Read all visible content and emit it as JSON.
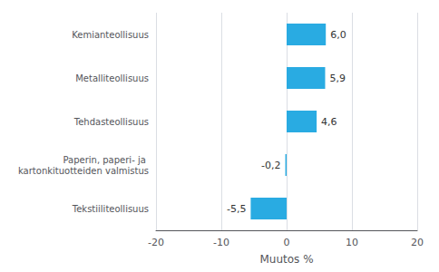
{
  "chart_data": {
    "type": "bar",
    "orientation": "horizontal",
    "categories": [
      "Tekstiiliteollisuus",
      "Paperin, paperi- ja kartonkituotteiden valmistus",
      "Tehdasteollisuus",
      "Metalliteollisuus",
      "Kemianteollisuus"
    ],
    "values": [
      -5.5,
      -0.2,
      4.6,
      5.9,
      6.0
    ],
    "value_labels": [
      "-5,5",
      "-0,2",
      "4,6",
      "5,9",
      "6,0"
    ],
    "data_labels": true,
    "color": "#29ABE2",
    "xlabel": "Muutos %",
    "xlim": [
      -20,
      20
    ],
    "xticks": [
      -20,
      -10,
      0,
      10,
      20
    ],
    "grid": true
  }
}
